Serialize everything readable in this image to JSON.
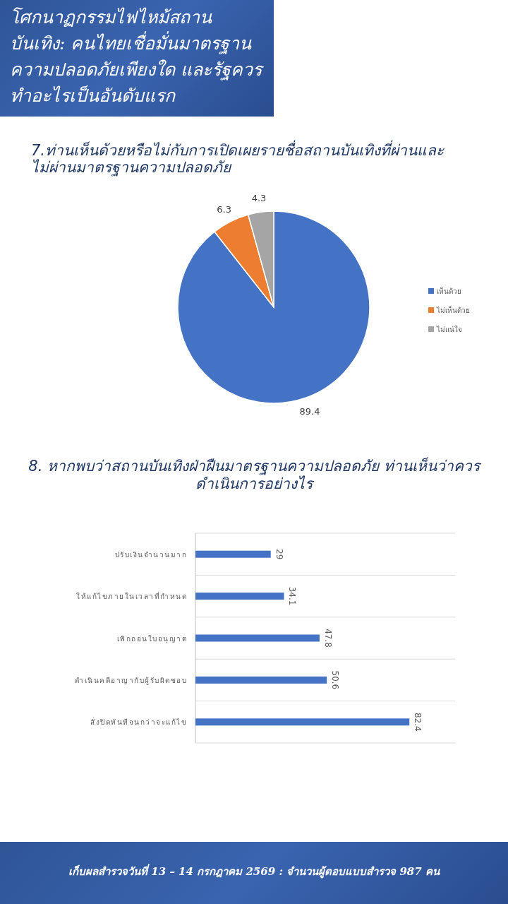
{
  "chart_data": [
    {
      "type": "other",
      "title": "โศกนาฏกรรมไฟไหม้สถานบันเทิง: คนไทยเชื่อมั่นมาตรฐานความปลอดภัยเพียงใด และรัฐควรทำอะไรเป็นอันดับแรก",
      "annotations": [
        "เก็บผลสำรวจวันที่ 13 – 14 กรกฎาคม 2569  : จำนวนผู้ตอบแบบสำรวจ 987 คน"
      ]
    },
    {
      "type": "pie",
      "title": "7.ท่านเห็นด้วยหรือไม่กับการเปิดเผยรายชื่อสถานบันเทิงที่ผ่านและไม่ผ่านมาตรฐานความปลอดภัย",
      "categories": [
        "เห็นด้วย",
        "ไม่เห็นด้วย",
        "ไม่แน่ใจ"
      ],
      "values": [
        89.4,
        6.3,
        4.3
      ],
      "colors": [
        "#4472c4",
        "#ed7d31",
        "#a5a5a5"
      ],
      "data_labels": true,
      "legend": "right"
    },
    {
      "type": "bar",
      "orientation": "horizontal",
      "title": "8. หากพบว่าสถานบันเทิงฝ่าฝืนมาตรฐานความปลอดภัย ท่านเห็นว่าควรดำเนินการอย่างไร",
      "categories": [
        "ปรับเงินจำนวนมาก",
        "ให้แก้ไขภายในเวลาที่กำหนด",
        "เพิกถอนใบอนุญาต",
        "ดำเนินคดีอาญากับผู้รับผิดชอบ",
        "สั่งปิดทันทีจนกว่าจะแก้ไข"
      ],
      "values": [
        29,
        34.1,
        47.8,
        50.6,
        82.4
      ],
      "color": "#4472c4",
      "xlim": [
        0,
        100
      ],
      "data_labels": true,
      "grid": "y"
    }
  ]
}
